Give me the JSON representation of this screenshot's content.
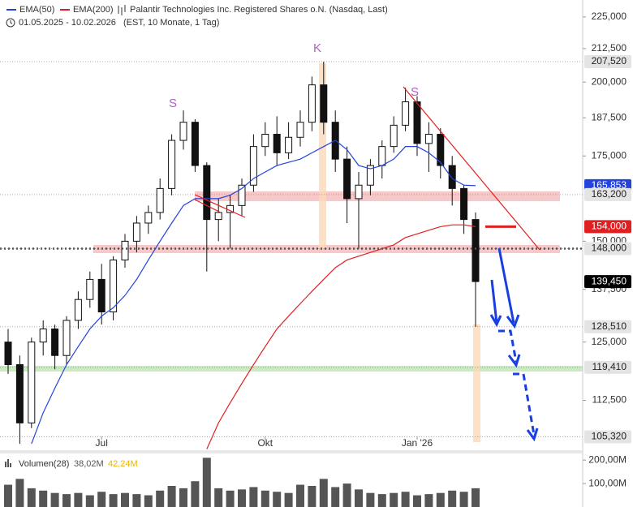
{
  "chart_data": {
    "type": "candlestick",
    "title": "Palantir Technologies Inc. Registered Shares o.N. (Nasdaq, Last)",
    "date_range": "01.05.2025 - 10.02.2026",
    "subtitle": "(EST, 10 Monate, 1 Tag)",
    "log_scale": true,
    "categories": [
      null,
      null,
      null,
      null,
      null,
      null,
      null,
      null,
      "Jul",
      null,
      null,
      null,
      null,
      null,
      null,
      null,
      null,
      null,
      null,
      null,
      null,
      null,
      "Okt",
      null,
      null,
      null,
      null,
      null,
      null,
      null,
      null,
      null,
      null,
      null,
      null,
      "Jan '26",
      null,
      null,
      null,
      null,
      null
    ],
    "open": [
      125,
      120,
      108,
      125,
      128,
      122,
      130,
      135,
      140,
      132,
      145,
      150,
      155,
      158,
      165,
      180,
      186,
      172,
      156,
      158,
      160,
      166,
      178,
      182,
      176,
      181,
      186,
      199,
      186,
      174,
      162,
      166,
      172,
      178,
      185,
      193,
      179,
      182,
      172,
      165,
      156
    ],
    "high": [
      128,
      122,
      126,
      130,
      129,
      131,
      137,
      142,
      144,
      146,
      152,
      157,
      160,
      168,
      182,
      190,
      187,
      173,
      162,
      163,
      168,
      182,
      186,
      188,
      186,
      190,
      202,
      207.52,
      190,
      178,
      170,
      174,
      180,
      188,
      198,
      195,
      186,
      184,
      175,
      166,
      158
    ],
    "low": [
      118,
      104,
      107,
      122,
      119,
      120,
      128,
      133,
      129,
      130,
      143,
      147,
      152,
      156,
      163,
      177,
      170,
      142,
      150,
      148,
      157,
      164,
      175,
      172,
      174,
      178,
      183,
      182,
      170,
      155,
      148,
      163,
      168,
      176,
      183,
      175,
      170,
      168,
      160,
      152,
      128.51
    ],
    "close": [
      120,
      108,
      125,
      128,
      122,
      130,
      135,
      140,
      132,
      145,
      150,
      155,
      158,
      165,
      180,
      186,
      172,
      156,
      158,
      160,
      166,
      178,
      182,
      176,
      181,
      186,
      199,
      186,
      174,
      162,
      166,
      172,
      178,
      185,
      193,
      179,
      182,
      172,
      165,
      156,
      139.45
    ],
    "candle_color": "#111111",
    "series": [
      {
        "name": "EMA(50)",
        "color": "#2244dd",
        "values": [
          null,
          null,
          104,
          110,
          115,
          120,
          124,
          128,
          131,
          133,
          136,
          140,
          145,
          150,
          155,
          160,
          162,
          162,
          162,
          163,
          165,
          168,
          170,
          172,
          173,
          174,
          176,
          178,
          180,
          177,
          172,
          171,
          172,
          174,
          178,
          178,
          176,
          173,
          168,
          166,
          165.853
        ]
      },
      {
        "name": "EMA(200)",
        "color": "#e02020",
        "values": [
          null,
          null,
          null,
          null,
          null,
          null,
          null,
          null,
          null,
          null,
          null,
          null,
          null,
          null,
          null,
          null,
          null,
          103,
          108,
          112,
          116,
          120,
          124,
          128,
          131,
          134,
          137,
          140,
          143,
          145,
          146,
          147,
          148,
          149,
          151,
          152,
          153,
          154,
          154.5,
          154.5,
          154
        ]
      }
    ],
    "ylim": [
      102.8,
      232
    ],
    "yticks": [
      {
        "value": 225,
        "label": "225,000"
      },
      {
        "value": 212.5,
        "label": "212,500"
      },
      {
        "value": 200,
        "label": "200,000"
      },
      {
        "value": 187.5,
        "label": "187,500"
      },
      {
        "value": 175,
        "label": "175,000"
      },
      {
        "value": 150,
        "label": "150,000"
      },
      {
        "value": 137.5,
        "label": "137,500"
      },
      {
        "value": 125,
        "label": "125,000"
      },
      {
        "value": 112.5,
        "label": "112,500"
      }
    ],
    "price_tags": [
      {
        "value": 207.52,
        "label": "207,520",
        "color": "#e4e4e4",
        "text_color": "#222222"
      },
      {
        "value": 165.853,
        "label": "165,853",
        "color": "#2244dd",
        "text_color": "#ffffff"
      },
      {
        "value": 163.2,
        "label": "163,200",
        "color": "#e4e4e4",
        "text_color": "#222222"
      },
      {
        "value": 154,
        "label": "154,000",
        "color": "#e02020",
        "text_color": "#ffffff"
      },
      {
        "value": 148,
        "label": "148,000",
        "color": "#e4e4e4",
        "text_color": "#222222"
      },
      {
        "value": 139.45,
        "label": "139,450",
        "color": "#000000",
        "text_color": "#ffffff"
      },
      {
        "value": 128.51,
        "label": "128,510",
        "color": "#e4e4e4",
        "text_color": "#222222"
      },
      {
        "value": 119.41,
        "label": "119,410",
        "color": "#e4e4e4",
        "text_color": "#222222"
      },
      {
        "value": 105.32,
        "label": "105,320",
        "color": "#e4e4e4",
        "text_color": "#222222"
      }
    ],
    "annotations": [
      "S",
      "K",
      "S"
    ],
    "volume": {
      "name": "Volumen(28)",
      "readouts": [
        {
          "value": 38.02,
          "label": "38,02M",
          "color": "#555555"
        },
        {
          "value": 42.24,
          "label": "42,24M",
          "color": "#e8b400"
        }
      ],
      "values": [
        95,
        120,
        80,
        70,
        60,
        55,
        60,
        50,
        65,
        55,
        60,
        55,
        50,
        70,
        90,
        80,
        110,
        210,
        80,
        70,
        75,
        85,
        70,
        65,
        60,
        95,
        90,
        120,
        85,
        100,
        75,
        60,
        55,
        60,
        65,
        50,
        55,
        60,
        70,
        65,
        80
      ],
      "color": "#555555",
      "ylim": [
        0,
        225
      ],
      "yticks": [
        {
          "value": 200,
          "label": "200,00M"
        },
        {
          "value": 100,
          "label": "100,00M"
        }
      ]
    }
  }
}
